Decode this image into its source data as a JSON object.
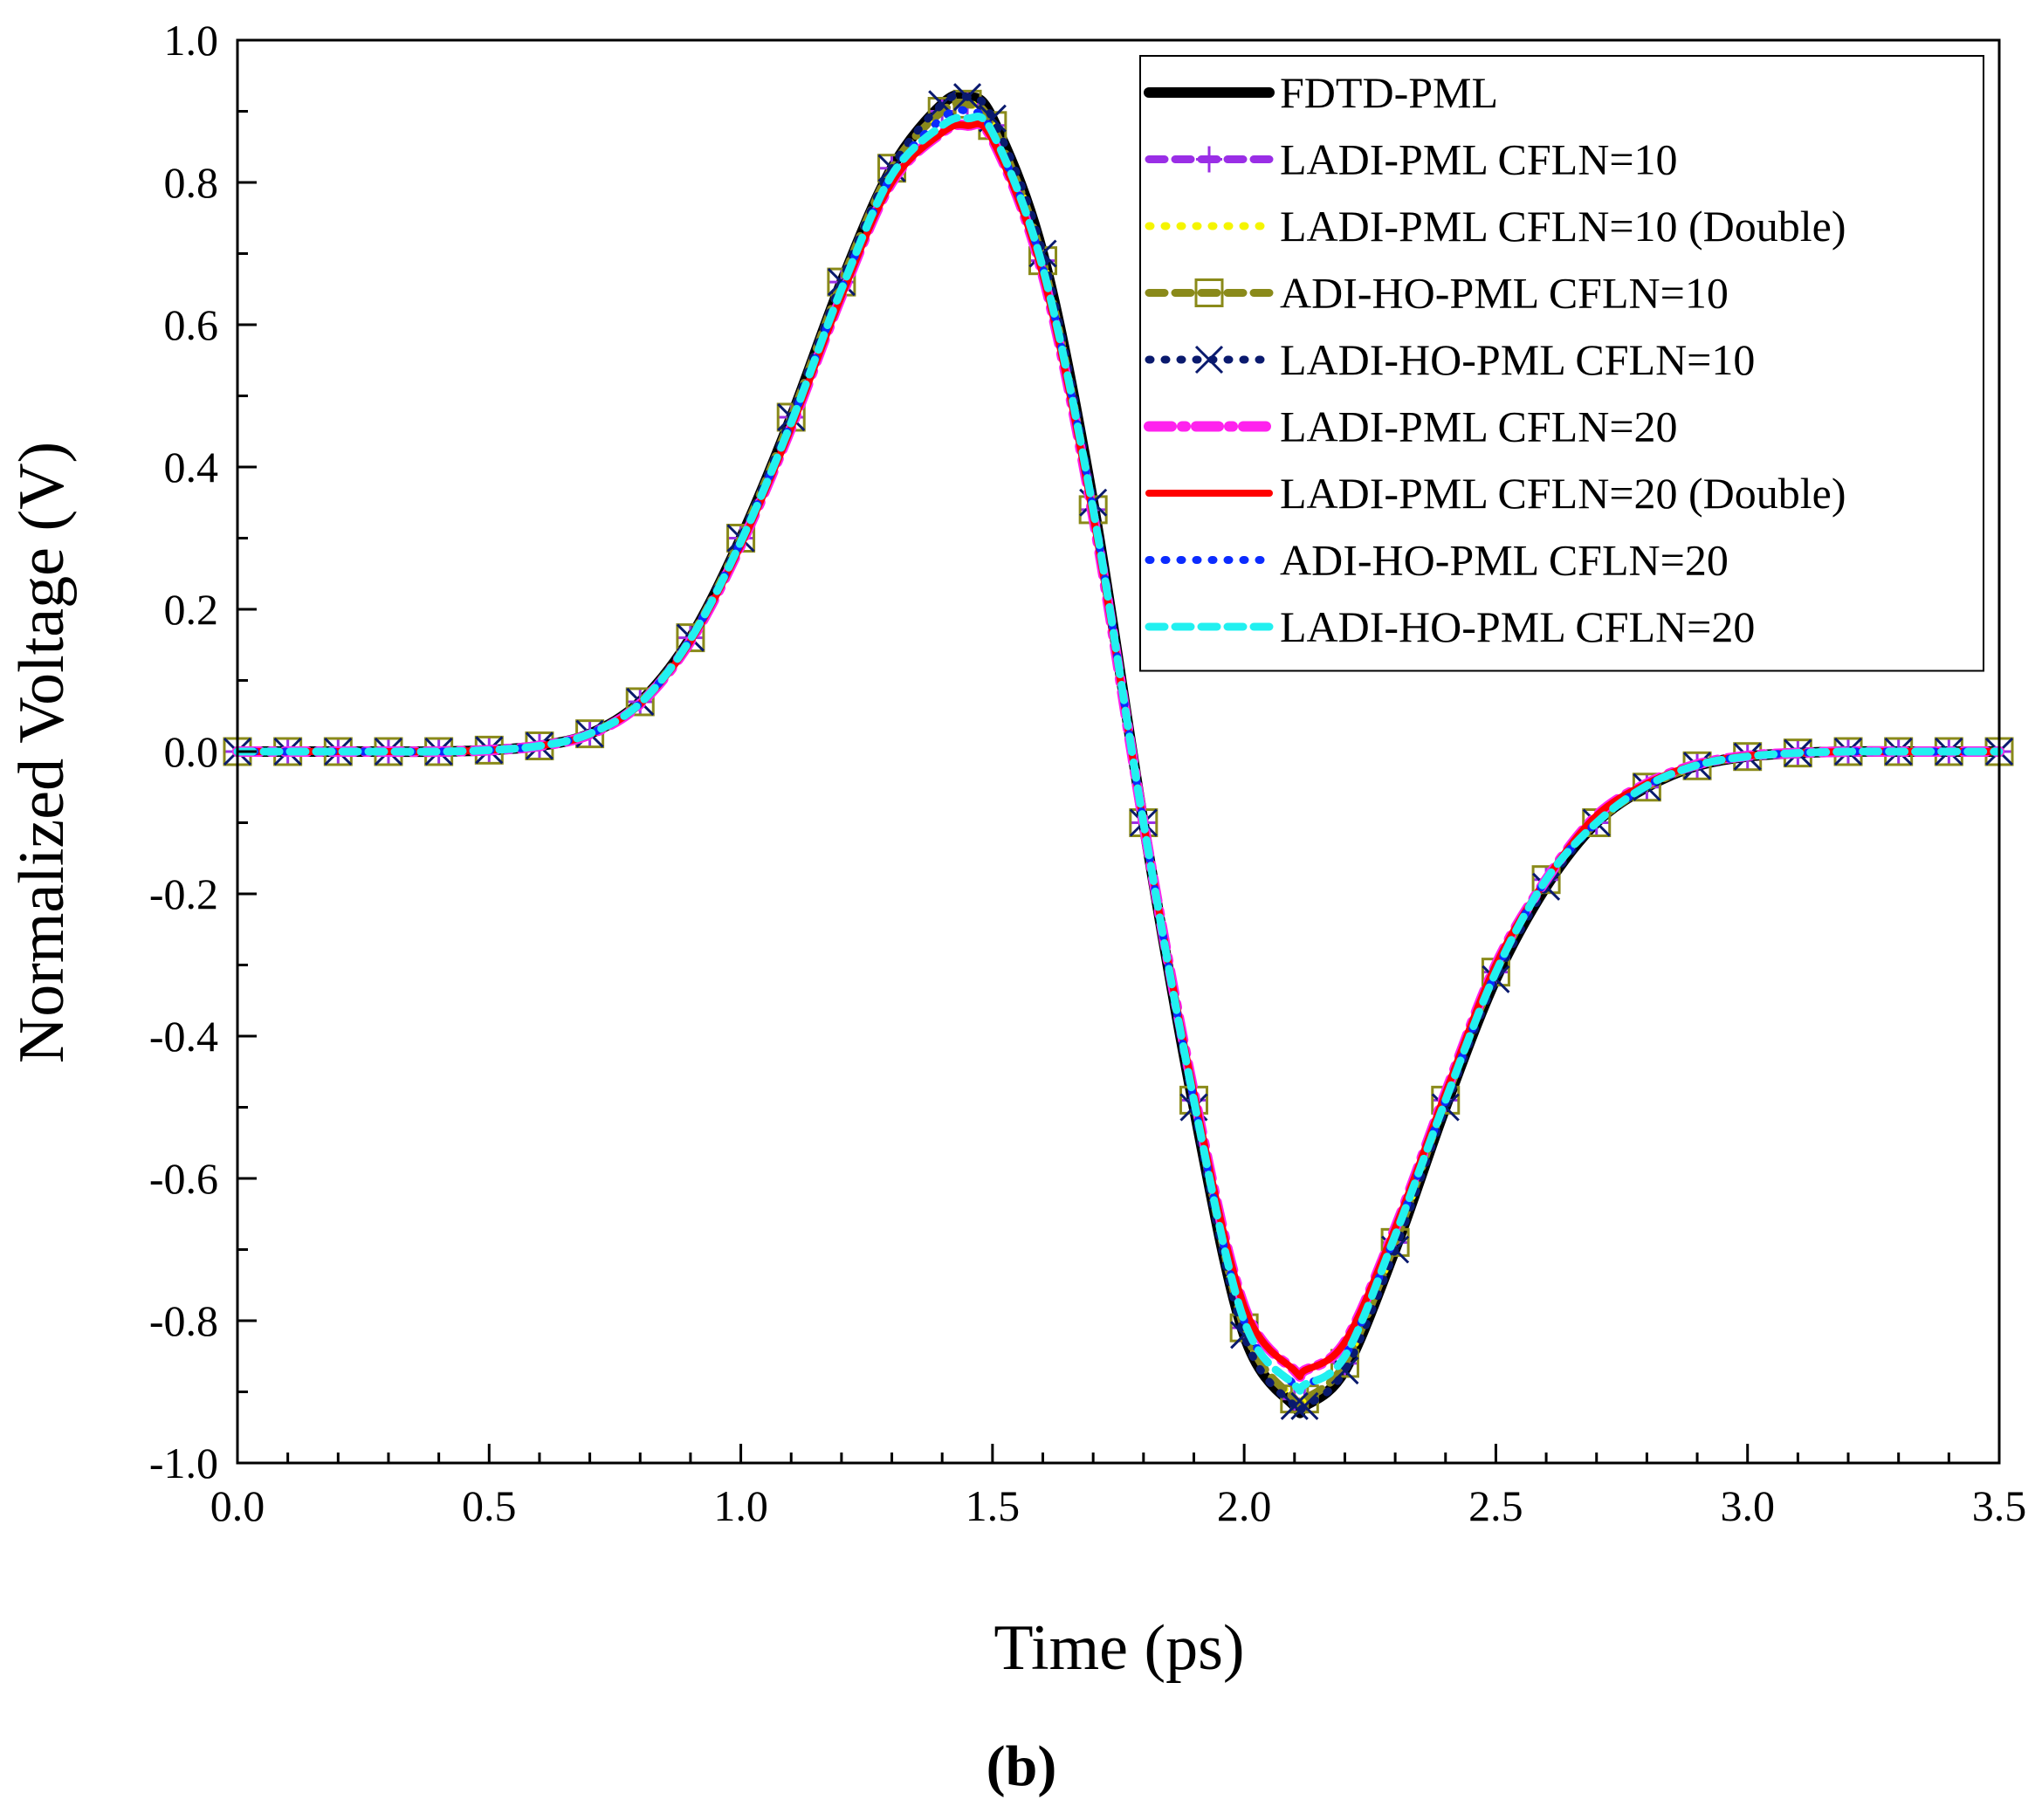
{
  "figure_label": {
    "open": "(",
    "letter": "b",
    "close": ")"
  },
  "chart_data": {
    "type": "line",
    "xlabel": "Time (ps)",
    "ylabel": "Normalized Voltage (V)",
    "xlim": [
      0.0,
      3.5
    ],
    "ylim": [
      -1.0,
      1.0
    ],
    "x_ticks": [
      0.0,
      0.5,
      1.0,
      1.5,
      2.0,
      2.5,
      3.0,
      3.5
    ],
    "y_ticks": [
      -1.0,
      -0.8,
      -0.6,
      -0.4,
      -0.2,
      0.0,
      0.2,
      0.4,
      0.6,
      0.8,
      1.0
    ],
    "x_tick_labels": [
      "0.0",
      "0.5",
      "1.0",
      "1.5",
      "2.0",
      "2.5",
      "3.0",
      "3.5"
    ],
    "y_tick_labels": [
      "-1.0",
      "-0.8",
      "-0.6",
      "-0.4",
      "-0.2",
      "0.0",
      "0.2",
      "0.4",
      "0.6",
      "0.8",
      "1.0"
    ],
    "grid": false,
    "legend_position": "top-right",
    "x": [
      0.0,
      0.1,
      0.2,
      0.3,
      0.4,
      0.5,
      0.6,
      0.7,
      0.8,
      0.9,
      1.0,
      1.1,
      1.2,
      1.3,
      1.4,
      1.45,
      1.5,
      1.6,
      1.7,
      1.8,
      1.9,
      2.0,
      2.1,
      2.12,
      2.2,
      2.3,
      2.4,
      2.5,
      2.6,
      2.7,
      2.8,
      2.9,
      3.0,
      3.1,
      3.2,
      3.3,
      3.4,
      3.5
    ],
    "series": [
      {
        "name": "FDTD-PML",
        "color": "#000000",
        "style": "solid-thick",
        "marker": "none",
        "values": [
          0.0,
          0.0,
          0.0,
          0.0,
          0.0,
          0.002,
          0.008,
          0.025,
          0.07,
          0.16,
          0.3,
          0.47,
          0.66,
          0.82,
          0.91,
          0.92,
          0.89,
          0.7,
          0.35,
          -0.1,
          -0.5,
          -0.82,
          -0.92,
          -0.92,
          -0.87,
          -0.7,
          -0.5,
          -0.32,
          -0.19,
          -0.1,
          -0.05,
          -0.02,
          -0.007,
          -0.002,
          0.0,
          0.0,
          0.0,
          0.0
        ]
      },
      {
        "name": "LADI-PML CFLN=10",
        "color": "#9a2ee6",
        "style": "dashed",
        "marker": "plus",
        "values": [
          0.0,
          0.0,
          0.0,
          0.0,
          0.0,
          0.002,
          0.008,
          0.025,
          0.07,
          0.16,
          0.3,
          0.47,
          0.66,
          0.82,
          0.9,
          0.91,
          0.88,
          0.69,
          0.34,
          -0.1,
          -0.49,
          -0.81,
          -0.91,
          -0.91,
          -0.86,
          -0.69,
          -0.49,
          -0.31,
          -0.18,
          -0.1,
          -0.05,
          -0.02,
          -0.007,
          -0.002,
          0.0,
          0.0,
          0.0,
          0.0
        ]
      },
      {
        "name": "LADI-PML CFLN=10 (Double)",
        "color": "#f5f500",
        "style": "dotted",
        "marker": "none",
        "values": [
          0.0,
          0.0,
          0.0,
          0.0,
          0.0,
          0.002,
          0.008,
          0.025,
          0.07,
          0.16,
          0.3,
          0.47,
          0.66,
          0.82,
          0.9,
          0.91,
          0.88,
          0.69,
          0.34,
          -0.1,
          -0.49,
          -0.81,
          -0.91,
          -0.91,
          -0.86,
          -0.69,
          -0.49,
          -0.31,
          -0.18,
          -0.1,
          -0.05,
          -0.02,
          -0.007,
          -0.002,
          0.0,
          0.0,
          0.0,
          0.0
        ]
      },
      {
        "name": "ADI-HO-PML CFLN=10",
        "color": "#8a8a1a",
        "style": "dashed",
        "marker": "square",
        "values": [
          0.0,
          0.0,
          0.0,
          0.0,
          0.0,
          0.002,
          0.008,
          0.025,
          0.07,
          0.16,
          0.3,
          0.47,
          0.66,
          0.82,
          0.9,
          0.91,
          0.88,
          0.69,
          0.34,
          -0.1,
          -0.49,
          -0.81,
          -0.91,
          -0.91,
          -0.86,
          -0.69,
          -0.49,
          -0.31,
          -0.18,
          -0.1,
          -0.05,
          -0.02,
          -0.007,
          -0.002,
          0.0,
          0.0,
          0.0,
          0.0
        ]
      },
      {
        "name": "LADI-HO-PML CFLN=10",
        "color": "#0a1a6e",
        "style": "dotted",
        "marker": "x",
        "values": [
          0.0,
          0.0,
          0.0,
          0.0,
          0.0,
          0.002,
          0.008,
          0.025,
          0.07,
          0.16,
          0.3,
          0.47,
          0.66,
          0.82,
          0.91,
          0.92,
          0.89,
          0.7,
          0.35,
          -0.1,
          -0.5,
          -0.82,
          -0.92,
          -0.92,
          -0.87,
          -0.7,
          -0.5,
          -0.32,
          -0.19,
          -0.1,
          -0.05,
          -0.02,
          -0.007,
          -0.002,
          0.0,
          0.0,
          0.0,
          0.0
        ]
      },
      {
        "name": "LADI-PML CFLN=20",
        "color": "#ff22ee",
        "style": "dash-dot",
        "marker": "none",
        "values": [
          0.0,
          0.0,
          0.0,
          0.0,
          0.0,
          0.002,
          0.008,
          0.024,
          0.067,
          0.155,
          0.29,
          0.455,
          0.64,
          0.8,
          0.87,
          0.88,
          0.86,
          0.67,
          0.33,
          -0.1,
          -0.48,
          -0.78,
          -0.87,
          -0.87,
          -0.83,
          -0.67,
          -0.48,
          -0.3,
          -0.18,
          -0.09,
          -0.045,
          -0.018,
          -0.006,
          -0.002,
          0.0,
          0.0,
          0.0,
          0.0
        ]
      },
      {
        "name": "LADI-PML CFLN=20 (Double)",
        "color": "#ff0000",
        "style": "solid",
        "marker": "none",
        "values": [
          0.0,
          0.0,
          0.0,
          0.0,
          0.0,
          0.002,
          0.008,
          0.024,
          0.067,
          0.155,
          0.29,
          0.455,
          0.64,
          0.8,
          0.87,
          0.88,
          0.86,
          0.67,
          0.33,
          -0.1,
          -0.48,
          -0.78,
          -0.87,
          -0.87,
          -0.83,
          -0.67,
          -0.48,
          -0.3,
          -0.18,
          -0.09,
          -0.045,
          -0.018,
          -0.006,
          -0.002,
          0.0,
          0.0,
          0.0,
          0.0
        ]
      },
      {
        "name": "ADI-HO-PML CFLN=20",
        "color": "#0b2bff",
        "style": "dotted",
        "marker": "none",
        "values": [
          0.0,
          0.0,
          0.0,
          0.0,
          0.0,
          0.002,
          0.008,
          0.025,
          0.068,
          0.158,
          0.295,
          0.462,
          0.65,
          0.81,
          0.89,
          0.9,
          0.87,
          0.68,
          0.34,
          -0.1,
          -0.49,
          -0.8,
          -0.89,
          -0.89,
          -0.85,
          -0.68,
          -0.49,
          -0.31,
          -0.18,
          -0.1,
          -0.048,
          -0.019,
          -0.007,
          -0.002,
          0.0,
          0.0,
          0.0,
          0.0
        ]
      },
      {
        "name": "LADI-HO-PML CFLN=20",
        "color": "#22f0f0",
        "style": "dashed",
        "marker": "none",
        "values": [
          0.0,
          0.0,
          0.0,
          0.0,
          0.0,
          0.002,
          0.008,
          0.025,
          0.068,
          0.158,
          0.295,
          0.462,
          0.65,
          0.81,
          0.88,
          0.89,
          0.87,
          0.68,
          0.34,
          -0.1,
          -0.49,
          -0.8,
          -0.89,
          -0.89,
          -0.85,
          -0.68,
          -0.49,
          -0.31,
          -0.18,
          -0.1,
          -0.048,
          -0.019,
          -0.007,
          -0.002,
          0.0,
          0.0,
          0.0,
          0.0
        ]
      }
    ]
  }
}
